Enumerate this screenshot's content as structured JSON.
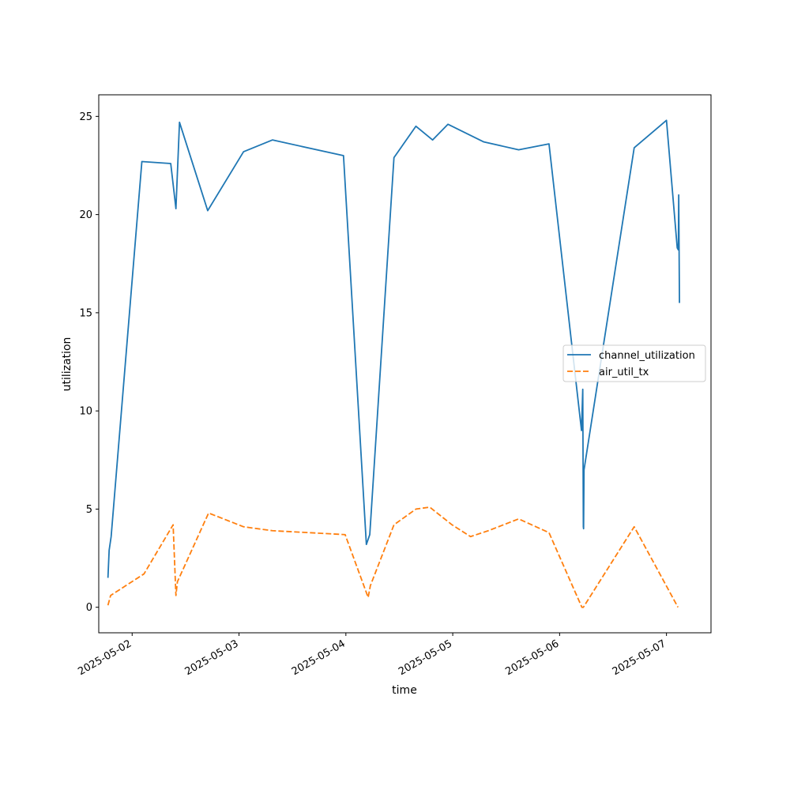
{
  "chart_data": {
    "type": "line",
    "title": "",
    "xlabel": "time",
    "ylabel": "utilization",
    "x_type": "datetime",
    "xlim": [
      "2025-05-01T16:30",
      "2025-05-07T10:00"
    ],
    "ylim": [
      -1.3,
      26.1
    ],
    "x_ticks": [
      "2025-05-02",
      "2025-05-03",
      "2025-05-04",
      "2025-05-05",
      "2025-05-06",
      "2025-05-07"
    ],
    "y_ticks": [
      0,
      5,
      10,
      15,
      20,
      25
    ],
    "grid": false,
    "legend_position": "center-right",
    "series": [
      {
        "name": "channel_utilization",
        "color": "#1f77b4",
        "style": "solid",
        "points": [
          {
            "x": "2025-05-01T18:34",
            "y": 1.5
          },
          {
            "x": "2025-05-01T18:50",
            "y": 2.9
          },
          {
            "x": "2025-05-01T19:17",
            "y": 3.6
          },
          {
            "x": "2025-05-02T02:11",
            "y": 22.7
          },
          {
            "x": "2025-05-02T08:40",
            "y": 22.6
          },
          {
            "x": "2025-05-02T09:50",
            "y": 20.3
          },
          {
            "x": "2025-05-02T10:38",
            "y": 24.7
          },
          {
            "x": "2025-05-02T16:58",
            "y": 20.2
          },
          {
            "x": "2025-05-03T01:01",
            "y": 23.2
          },
          {
            "x": "2025-05-03T07:30",
            "y": 23.8
          },
          {
            "x": "2025-05-03T23:28",
            "y": 23.0
          },
          {
            "x": "2025-05-04T04:36",
            "y": 3.2
          },
          {
            "x": "2025-05-04T05:22",
            "y": 3.7
          },
          {
            "x": "2025-05-04T10:48",
            "y": 22.9
          },
          {
            "x": "2025-05-04T15:44",
            "y": 24.5
          },
          {
            "x": "2025-05-04T19:29",
            "y": 23.8
          },
          {
            "x": "2025-05-04T22:56",
            "y": 24.6
          },
          {
            "x": "2025-05-05T06:59",
            "y": 23.7
          },
          {
            "x": "2025-05-05T14:48",
            "y": 23.3
          },
          {
            "x": "2025-05-05T21:37",
            "y": 23.6
          },
          {
            "x": "2025-05-06T04:55",
            "y": 9.0
          },
          {
            "x": "2025-05-06T05:12",
            "y": 11.1
          },
          {
            "x": "2025-05-06T05:20",
            "y": 4.1
          },
          {
            "x": "2025-05-06T05:23",
            "y": 4.0
          },
          {
            "x": "2025-05-06T05:29",
            "y": 7.0
          },
          {
            "x": "2025-05-06T16:45",
            "y": 23.4
          },
          {
            "x": "2025-05-07T00:00",
            "y": 24.8
          },
          {
            "x": "2025-05-07T02:25",
            "y": 18.3
          },
          {
            "x": "2025-05-07T02:40",
            "y": 18.2
          },
          {
            "x": "2025-05-07T02:45",
            "y": 21.0
          },
          {
            "x": "2025-05-07T02:55",
            "y": 15.5
          }
        ]
      },
      {
        "name": "air_util_tx",
        "color": "#ff7f0e",
        "style": "dashed",
        "points": [
          {
            "x": "2025-05-01T18:34",
            "y": 0.1
          },
          {
            "x": "2025-05-01T19:10",
            "y": 0.6
          },
          {
            "x": "2025-05-02T02:40",
            "y": 1.7
          },
          {
            "x": "2025-05-02T09:12",
            "y": 4.2
          },
          {
            "x": "2025-05-02T09:50",
            "y": 0.6
          },
          {
            "x": "2025-05-02T10:10",
            "y": 1.3
          },
          {
            "x": "2025-05-02T17:10",
            "y": 4.8
          },
          {
            "x": "2025-05-03T01:01",
            "y": 4.1
          },
          {
            "x": "2025-05-03T07:30",
            "y": 3.9
          },
          {
            "x": "2025-05-03T23:50",
            "y": 3.7
          },
          {
            "x": "2025-05-04T05:00",
            "y": 0.5
          },
          {
            "x": "2025-05-04T05:30",
            "y": 1.1
          },
          {
            "x": "2025-05-04T10:48",
            "y": 4.2
          },
          {
            "x": "2025-05-04T15:44",
            "y": 5.0
          },
          {
            "x": "2025-05-04T18:50",
            "y": 5.1
          },
          {
            "x": "2025-05-04T23:50",
            "y": 4.2
          },
          {
            "x": "2025-05-05T04:00",
            "y": 3.6
          },
          {
            "x": "2025-05-05T08:00",
            "y": 3.9
          },
          {
            "x": "2025-05-05T14:48",
            "y": 4.5
          },
          {
            "x": "2025-05-05T21:37",
            "y": 3.8
          },
          {
            "x": "2025-05-06T05:00",
            "y": 0.0
          },
          {
            "x": "2025-05-06T05:20",
            "y": 0.0
          },
          {
            "x": "2025-05-06T16:45",
            "y": 4.1
          },
          {
            "x": "2025-05-07T02:35",
            "y": 0.0
          }
        ]
      }
    ]
  }
}
